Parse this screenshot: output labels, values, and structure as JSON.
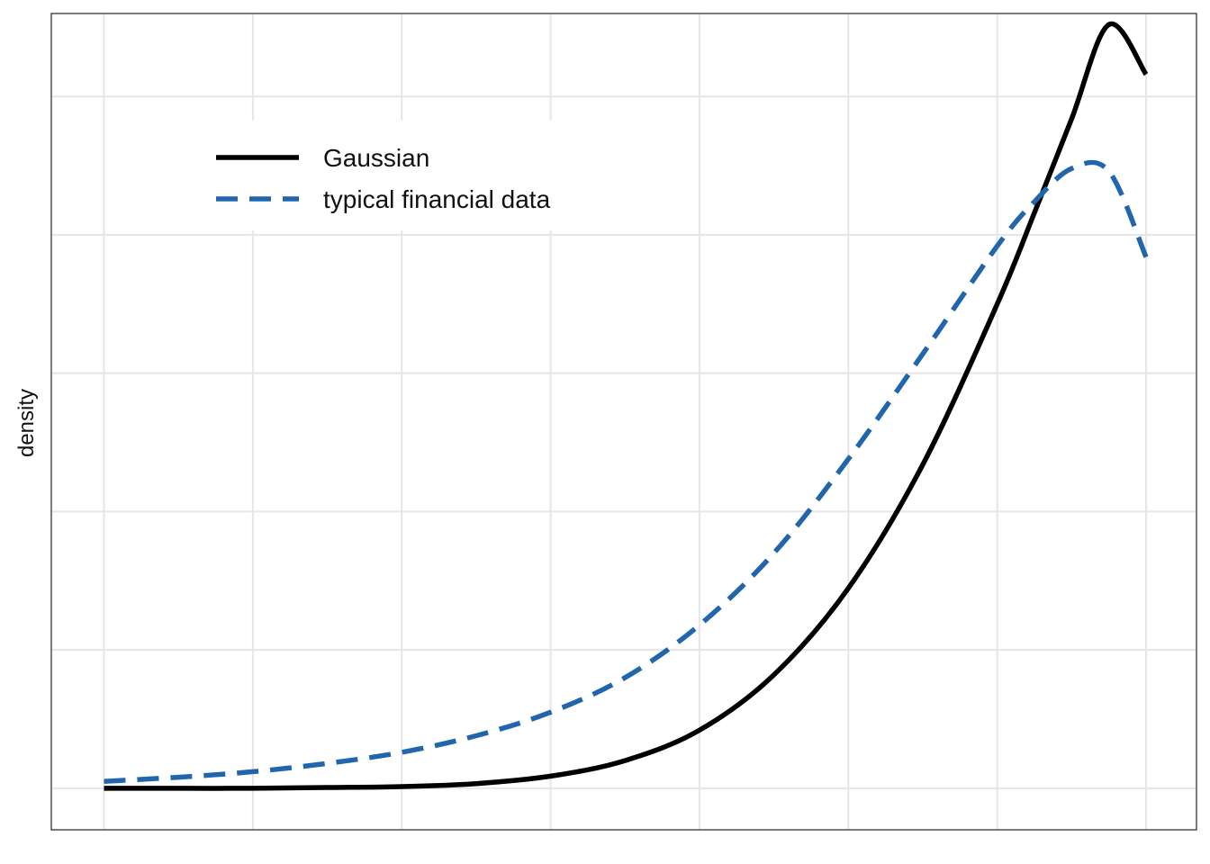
{
  "chart_data": {
    "type": "line",
    "title": "",
    "xlabel": "",
    "ylabel": "density",
    "xlim": [
      -3.5,
      0.0
    ],
    "ylim": [
      -0.015,
      0.28
    ],
    "grid": true,
    "x_ticks": [
      -3.5,
      -3.0,
      -2.5,
      -2.0,
      -1.5,
      -1.0,
      -0.5,
      0.0
    ],
    "y_ticks": [
      0.0,
      0.05,
      0.1,
      0.15,
      0.2,
      0.25
    ],
    "legend": {
      "position": "top-left"
    },
    "series": [
      {
        "name": "Gaussian",
        "style": "solid",
        "color": "#000000",
        "x": [
          -3.5,
          -3.25,
          -3.0,
          -2.75,
          -2.5,
          -2.25,
          -2.0,
          -1.75,
          -1.5,
          -1.25,
          -1.0,
          -0.75,
          -0.5,
          -0.375,
          -0.25,
          -0.125,
          0.0
        ],
        "y": [
          0.0,
          0.0,
          0.0,
          0.0003,
          0.0006,
          0.0017,
          0.0044,
          0.01,
          0.021,
          0.041,
          0.0723,
          0.117,
          0.175,
          0.208,
          0.242,
          0.276,
          0.258
        ]
      },
      {
        "name": "typical financial data",
        "style": "dashed",
        "color": "#2166ac",
        "x": [
          -3.5,
          -3.25,
          -3.0,
          -2.75,
          -2.5,
          -2.25,
          -2.0,
          -1.75,
          -1.5,
          -1.25,
          -1.0,
          -0.75,
          -0.5,
          -0.375,
          -0.25,
          -0.125,
          0.0
        ],
        "y": [
          0.0025,
          0.004,
          0.006,
          0.009,
          0.013,
          0.019,
          0.0275,
          0.04,
          0.059,
          0.085,
          0.119,
          0.157,
          0.196,
          0.212,
          0.224,
          0.223,
          0.192
        ]
      }
    ]
  }
}
